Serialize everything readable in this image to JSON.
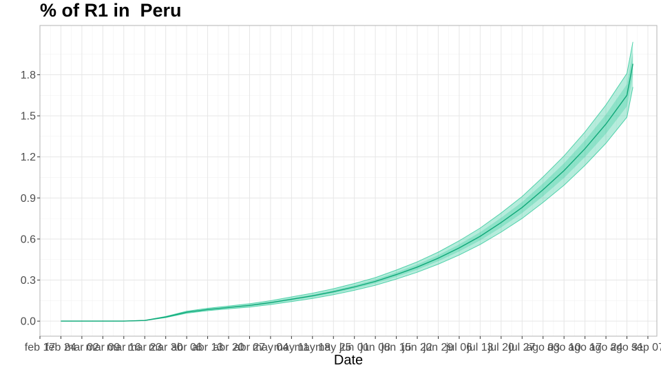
{
  "chart_data": {
    "type": "line",
    "title": "% of R1 in  Peru",
    "xlabel": "Date",
    "ylabel": "",
    "ylim": [
      -0.11,
      2.16
    ],
    "yticks": [
      0.0,
      0.3,
      0.6,
      0.9,
      1.2,
      1.5,
      1.8
    ],
    "ytick_labels": [
      "0.0",
      "0.3",
      "0.6",
      "0.9",
      "1.2",
      "1.5",
      "1.8"
    ],
    "x_start": "2020-02-17",
    "x_end": "2020-09-10",
    "xticks": [
      "2020-02-17",
      "2020-02-24",
      "2020-03-02",
      "2020-03-09",
      "2020-03-16",
      "2020-03-23",
      "2020-03-30",
      "2020-04-06",
      "2020-04-13",
      "2020-04-20",
      "2020-04-27",
      "2020-05-04",
      "2020-05-11",
      "2020-05-18",
      "2020-05-25",
      "2020-06-01",
      "2020-06-08",
      "2020-06-15",
      "2020-06-22",
      "2020-06-29",
      "2020-07-06",
      "2020-07-13",
      "2020-07-20",
      "2020-07-27",
      "2020-08-03",
      "2020-08-10",
      "2020-08-17",
      "2020-08-24",
      "2020-08-31",
      "2020-09-07"
    ],
    "xtick_labels": [
      "feb 17",
      "feb 24",
      "mar 02",
      "mar 09",
      "mar 16",
      "mar 23",
      "mar 30",
      "abr 06",
      "abr 13",
      "abr 20",
      "abr 27",
      "may 04",
      "may 11",
      "may 18",
      "may 25",
      "jun 01",
      "jun 08",
      "jun 15",
      "jun 22",
      "jun 29",
      "jul 06",
      "jul 13",
      "jul 20",
      "jul 27",
      "ago 03",
      "ago 10",
      "ago 17",
      "ago 24",
      "ago 31",
      "sep 07"
    ],
    "x": [
      "2020-02-24",
      "2020-03-16",
      "2020-03-23",
      "2020-03-30",
      "2020-04-06",
      "2020-04-13",
      "2020-04-20",
      "2020-04-27",
      "2020-05-04",
      "2020-05-11",
      "2020-05-18",
      "2020-05-25",
      "2020-06-01",
      "2020-06-08",
      "2020-06-15",
      "2020-06-22",
      "2020-06-29",
      "2020-07-06",
      "2020-07-13",
      "2020-07-20",
      "2020-07-27",
      "2020-08-03",
      "2020-08-10",
      "2020-08-17",
      "2020-08-24",
      "2020-08-31",
      "2020-09-02"
    ],
    "series": [
      {
        "values": [
          0.0,
          0.0,
          0.005,
          0.03,
          0.065,
          0.085,
          0.1,
          0.115,
          0.135,
          0.16,
          0.185,
          0.215,
          0.25,
          0.29,
          0.34,
          0.395,
          0.46,
          0.535,
          0.62,
          0.72,
          0.83,
          0.96,
          1.1,
          1.26,
          1.44,
          1.65,
          1.88
        ],
        "lower": [
          0.0,
          0.0,
          0.004,
          0.026,
          0.058,
          0.076,
          0.09,
          0.103,
          0.121,
          0.143,
          0.166,
          0.193,
          0.225,
          0.262,
          0.307,
          0.357,
          0.416,
          0.483,
          0.56,
          0.65,
          0.75,
          0.867,
          0.993,
          1.138,
          1.3,
          1.49,
          1.71
        ],
        "upper": [
          0.0,
          0.0,
          0.006,
          0.034,
          0.072,
          0.094,
          0.11,
          0.127,
          0.149,
          0.177,
          0.204,
          0.237,
          0.275,
          0.318,
          0.373,
          0.433,
          0.504,
          0.587,
          0.68,
          0.79,
          0.91,
          1.053,
          1.207,
          1.382,
          1.58,
          1.81,
          2.04
        ]
      }
    ],
    "line_color": "#0fa878",
    "band_color": "#2ec99a",
    "grid": true,
    "legend": "none"
  }
}
